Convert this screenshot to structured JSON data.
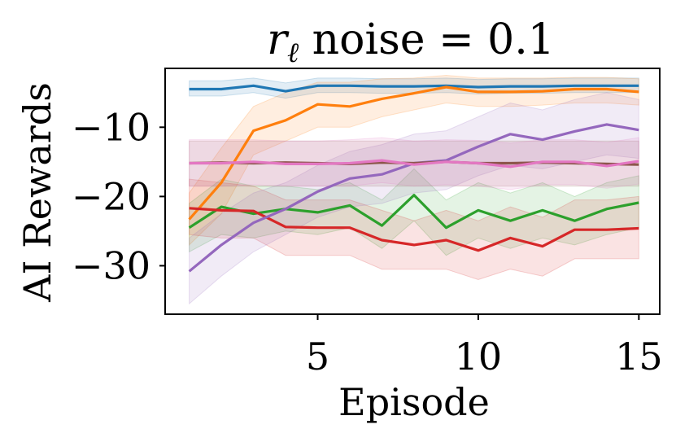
{
  "chart_data": {
    "type": "line",
    "title": "rℓ noise = 0.1",
    "title_symbol": "r",
    "title_subscript": "ℓ",
    "title_rest": " noise = 0.1",
    "xlabel": "Episode",
    "ylabel": "AI Rewards",
    "xlim": [
      0.25,
      15.65
    ],
    "ylim": [
      -37.0,
      -1.5
    ],
    "xticks": [
      5,
      10,
      15
    ],
    "xtick_labels": [
      "5",
      "10",
      "15"
    ],
    "yticks": [
      -10,
      -20,
      -30
    ],
    "ytick_labels": [
      "−10",
      "−20",
      "−30"
    ],
    "x": [
      1,
      2,
      3,
      4,
      5,
      6,
      7,
      8,
      9,
      10,
      11,
      12,
      13,
      14,
      15
    ],
    "series": [
      {
        "name": "blue",
        "color": "#1f77b4",
        "values": [
          -4.5,
          -4.5,
          -4.0,
          -4.8,
          -4.0,
          -4.0,
          -4.1,
          -4.1,
          -4.0,
          -4.2,
          -4.1,
          -4.1,
          -4.0,
          -4.0,
          -4.0
        ],
        "lower": [
          -5.5,
          -5.5,
          -5.0,
          -5.8,
          -5.0,
          -5.0,
          -5.1,
          -5.1,
          -5.0,
          -5.2,
          -5.1,
          -5.1,
          -5.0,
          -5.0,
          -5.0
        ],
        "upper": [
          -3.3,
          -3.3,
          -2.9,
          -3.6,
          -2.9,
          -2.9,
          -3.0,
          -3.0,
          -2.9,
          -3.1,
          -3.0,
          -3.0,
          -2.9,
          -2.9,
          -2.9
        ]
      },
      {
        "name": "orange",
        "color": "#ff7f0e",
        "values": [
          -23.3,
          -18.0,
          -10.5,
          -9.0,
          -6.7,
          -7.0,
          -5.9,
          -5.1,
          -4.2,
          -4.9,
          -4.9,
          -4.8,
          -4.5,
          -4.5,
          -4.9
        ],
        "lower": [
          -27.0,
          -22.5,
          -14.0,
          -12.0,
          -10.0,
          -10.0,
          -8.5,
          -7.5,
          -6.5,
          -7.0,
          -7.0,
          -6.8,
          -6.5,
          -6.5,
          -6.8
        ],
        "upper": [
          -19.5,
          -13.0,
          -7.0,
          -5.0,
          -3.5,
          -3.5,
          -3.0,
          -2.9,
          -2.5,
          -2.9,
          -2.9,
          -2.9,
          -2.8,
          -2.8,
          -3.0
        ]
      },
      {
        "name": "green",
        "color": "#2ca02c",
        "values": [
          -24.5,
          -21.5,
          -22.5,
          -21.8,
          -22.3,
          -21.3,
          -24.2,
          -19.8,
          -24.5,
          -22.0,
          -23.5,
          -22.0,
          -23.5,
          -21.8,
          -20.9
        ],
        "lower": [
          -28.0,
          -25.5,
          -26.0,
          -25.0,
          -25.5,
          -24.5,
          -27.5,
          -23.5,
          -28.5,
          -26.0,
          -27.5,
          -26.0,
          -27.0,
          -25.5,
          -24.5
        ],
        "upper": [
          -21.0,
          -17.5,
          -18.5,
          -18.5,
          -19.0,
          -18.0,
          -20.5,
          -16.0,
          -20.5,
          -18.0,
          -19.5,
          -18.0,
          -20.0,
          -18.0,
          -17.0
        ]
      },
      {
        "name": "red",
        "color": "#d62728",
        "values": [
          -21.7,
          -22.0,
          -22.1,
          -24.4,
          -24.5,
          -24.5,
          -26.3,
          -27.0,
          -26.3,
          -27.8,
          -26.0,
          -27.2,
          -24.8,
          -24.8,
          -24.6
        ],
        "lower": [
          -25.5,
          -26.0,
          -26.0,
          -28.5,
          -28.5,
          -28.5,
          -30.5,
          -30.5,
          -30.5,
          -32.0,
          -30.5,
          -31.5,
          -29.0,
          -29.0,
          -29.0
        ],
        "upper": [
          -17.5,
          -18.0,
          -18.5,
          -20.5,
          -20.5,
          -20.5,
          -22.0,
          -23.5,
          -22.0,
          -23.5,
          -21.5,
          -23.0,
          -20.5,
          -20.5,
          -20.0
        ]
      },
      {
        "name": "purple",
        "color": "#9467bd",
        "values": [
          -30.8,
          -27.0,
          -23.8,
          -21.8,
          -19.3,
          -17.4,
          -16.8,
          -15.2,
          -14.8,
          -12.8,
          -11.0,
          -11.8,
          -10.6,
          -9.6,
          -10.4
        ],
        "lower": [
          -35.5,
          -31.5,
          -28.0,
          -25.5,
          -23.0,
          -21.5,
          -21.0,
          -19.5,
          -19.0,
          -17.0,
          -15.5,
          -16.0,
          -15.0,
          -14.0,
          -14.5
        ],
        "upper": [
          -26.0,
          -22.5,
          -19.5,
          -18.0,
          -15.5,
          -13.5,
          -12.5,
          -11.0,
          -10.5,
          -8.5,
          -6.5,
          -7.5,
          -6.0,
          -5.0,
          -6.0
        ]
      },
      {
        "name": "brown",
        "color": "#8c564b",
        "values": [
          -15.2,
          -15.1,
          -15.2,
          -15.1,
          -15.2,
          -15.3,
          -15.1,
          -15.2,
          -15.0,
          -15.2,
          -15.2,
          -15.1,
          -15.2,
          -15.3,
          -15.4
        ],
        "lower": [
          -18.5,
          -18.5,
          -18.5,
          -18.5,
          -18.5,
          -18.5,
          -18.5,
          -18.5,
          -18.5,
          -18.5,
          -18.5,
          -18.5,
          -18.5,
          -18.5,
          -18.5
        ],
        "upper": [
          -12.0,
          -12.0,
          -12.0,
          -12.0,
          -12.0,
          -12.0,
          -12.0,
          -12.0,
          -12.0,
          -12.0,
          -12.0,
          -12.0,
          -12.0,
          -12.0,
          -12.0
        ]
      },
      {
        "name": "pink",
        "color": "#e377c2",
        "values": [
          -15.2,
          -15.2,
          -15.0,
          -15.3,
          -15.3,
          -15.2,
          -14.8,
          -15.4,
          -15.0,
          -15.2,
          -15.7,
          -15.0,
          -15.0,
          -15.6,
          -14.9
        ],
        "lower": [
          -18.5,
          -18.5,
          -18.3,
          -18.5,
          -18.5,
          -18.5,
          -18.0,
          -18.5,
          -18.3,
          -18.5,
          -19.0,
          -18.3,
          -18.3,
          -18.8,
          -18.2
        ],
        "upper": [
          -11.8,
          -11.8,
          -11.8,
          -12.0,
          -12.0,
          -11.8,
          -11.5,
          -12.0,
          -11.8,
          -11.9,
          -12.3,
          -11.8,
          -11.8,
          -12.2,
          -11.5
        ]
      }
    ]
  }
}
